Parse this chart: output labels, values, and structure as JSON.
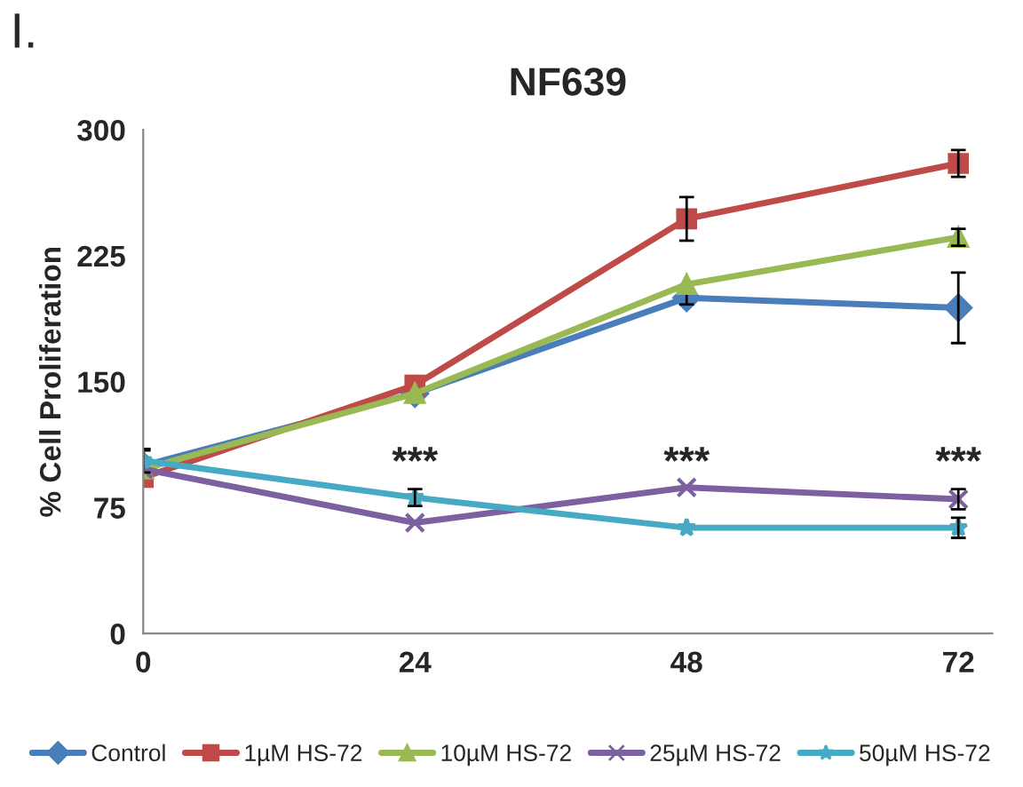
{
  "chart_data": {
    "type": "line",
    "title": "NF639",
    "ylabel": "% Cell Proliferation",
    "x": [
      0,
      24,
      48,
      72
    ],
    "xlim": [
      0,
      75
    ],
    "xticks": [
      0,
      24,
      48,
      72
    ],
    "ylim": [
      0,
      300
    ],
    "yticks": [
      0,
      75,
      150,
      225,
      300
    ],
    "grid": false,
    "legend": "bottom",
    "annotations": [
      "I.",
      "***",
      "***",
      "***"
    ],
    "series": [
      {
        "name": "Control",
        "color": "#4a7ebb",
        "marker": "diamond",
        "values": [
          100,
          143,
          200,
          194
        ],
        "errors": [
          9,
          null,
          4,
          21
        ]
      },
      {
        "name": "1µM HS-72",
        "color": "#be4b48",
        "marker": "square",
        "values": [
          93,
          148,
          247,
          280
        ],
        "errors": [
          null,
          null,
          13,
          8
        ]
      },
      {
        "name": "10µM HS-72",
        "color": "#98b954",
        "marker": "triangle",
        "values": [
          98,
          143,
          208,
          236
        ],
        "errors": [
          null,
          null,
          null,
          5
        ]
      },
      {
        "name": "25µM HS-72",
        "color": "#7d60a0",
        "marker": "cross",
        "values": [
          98,
          66,
          87,
          80
        ],
        "errors": [
          null,
          null,
          null,
          6
        ]
      },
      {
        "name": "50µM HS-72",
        "color": "#46aac5",
        "marker": "star",
        "values": [
          103,
          81,
          63,
          63
        ],
        "errors": [
          7,
          5,
          null,
          6
        ]
      }
    ]
  }
}
